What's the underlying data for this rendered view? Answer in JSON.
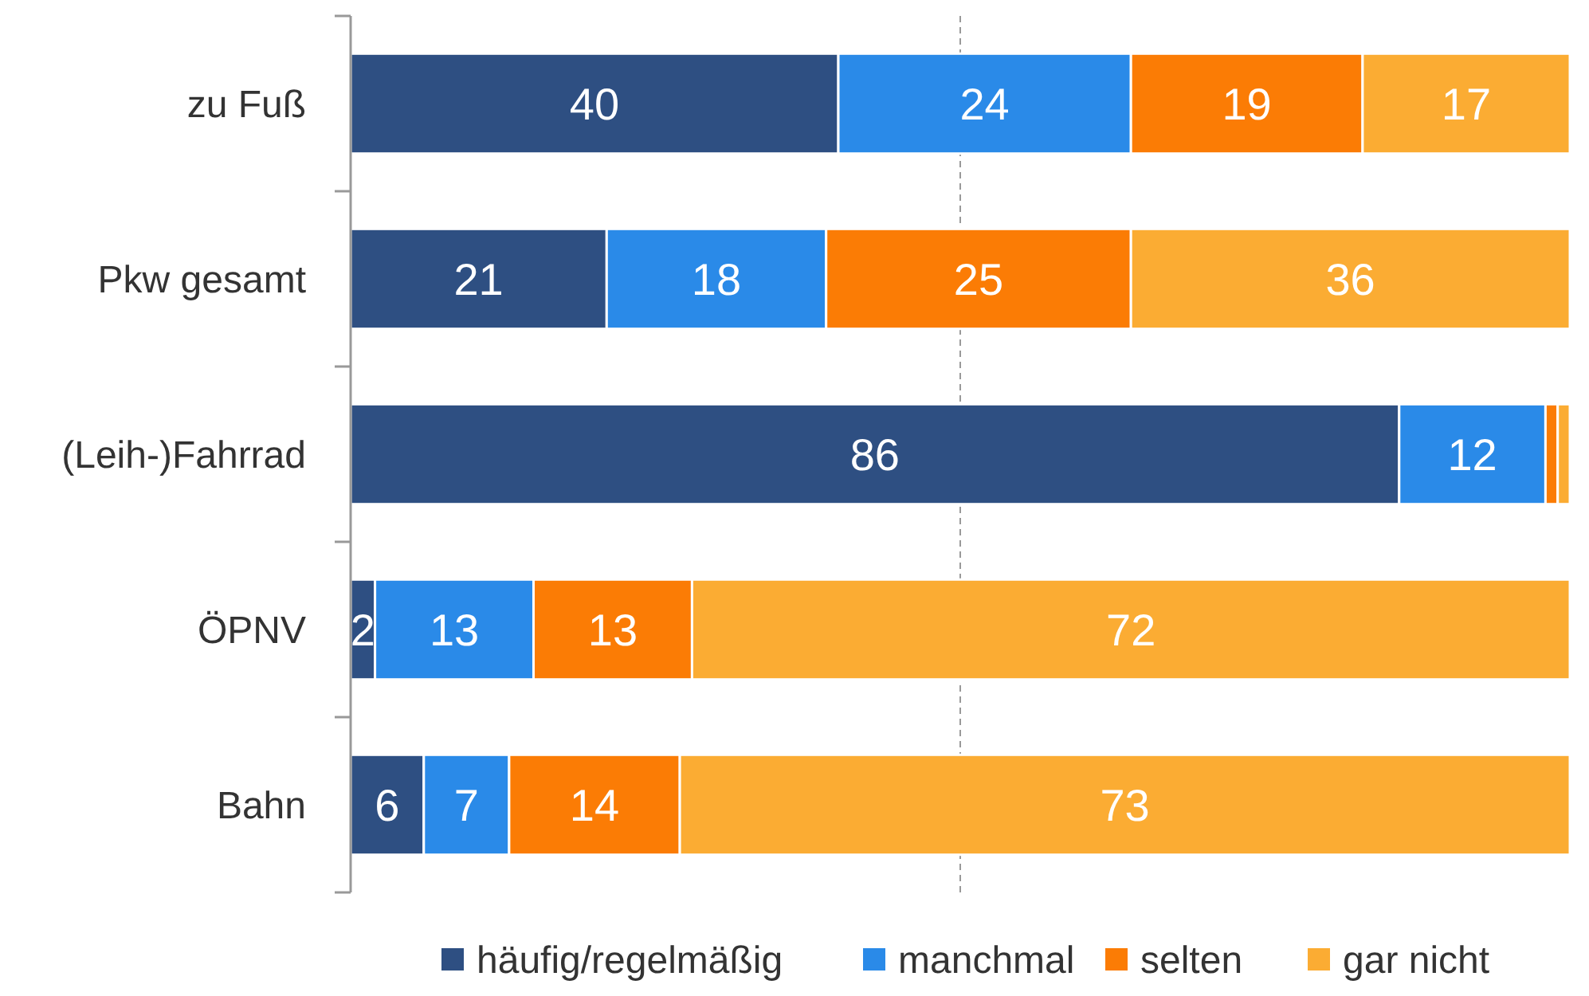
{
  "chart_data": {
    "type": "bar",
    "orientation": "horizontal",
    "stacked": true,
    "categories": [
      "zu Fuß",
      "Pkw gesamt",
      "(Leih-)Fahrrad",
      "ÖPNV",
      "Bahn"
    ],
    "series": [
      {
        "name": "häufig/regelmäßig",
        "color": "#2e4f82",
        "values": [
          40,
          21,
          86,
          2,
          6
        ],
        "value_labels": [
          "40",
          "21",
          "86",
          "2",
          "6"
        ]
      },
      {
        "name": "manchmal",
        "color": "#2a8ae8",
        "values": [
          24,
          18,
          12,
          13,
          7
        ],
        "value_labels": [
          "24",
          "18",
          "12",
          "13",
          "7"
        ]
      },
      {
        "name": "selten",
        "color": "#fb7c05",
        "values": [
          19,
          25,
          1,
          13,
          14
        ],
        "value_labels": [
          "19",
          "25",
          null,
          "13",
          "14"
        ]
      },
      {
        "name": "gar nicht",
        "color": "#fbac33",
        "values": [
          17,
          36,
          1,
          72,
          73
        ],
        "value_labels": [
          "17",
          "36",
          null,
          "72",
          "73"
        ]
      }
    ],
    "xlim": [
      0,
      100
    ],
    "tick_labels": "y",
    "legend": "bottom",
    "ref_lines": [
      {
        "axis": "x",
        "value": 50,
        "color": "#999999",
        "line_style": "dashed"
      }
    ]
  }
}
